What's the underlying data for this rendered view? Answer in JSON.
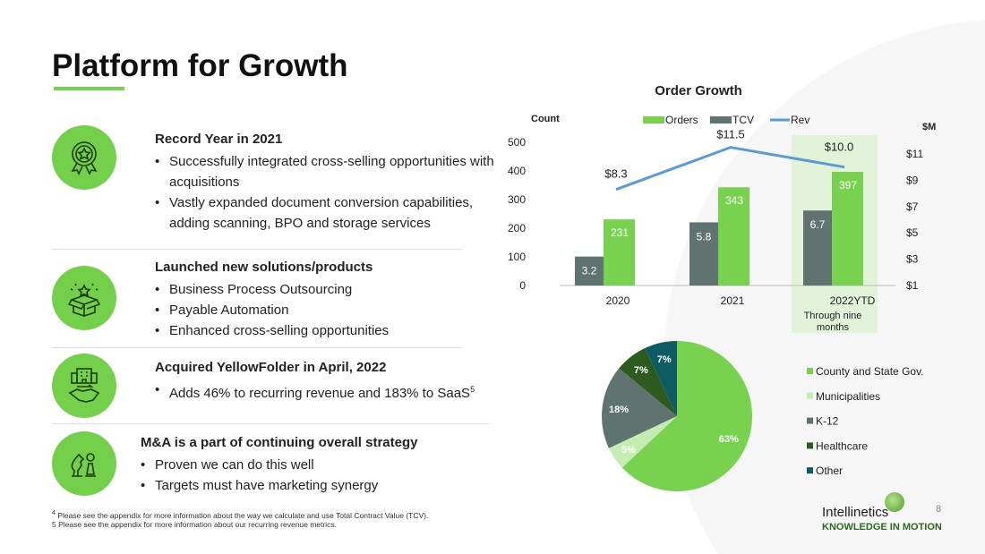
{
  "title": "Platform for Growth",
  "sections": [
    {
      "icon": "award-ribbon-icon",
      "heading": "Record Year in 2021",
      "bullets": [
        "Successfully integrated cross-selling opportunities with acquisitions",
        "Vastly expanded document conversion capabilities, adding scanning, BPO and storage services"
      ]
    },
    {
      "icon": "open-box-star-icon",
      "heading": "Launched new solutions/products",
      "bullets": [
        "Business Process Outsourcing",
        "Payable Automation",
        "Enhanced cross-selling opportunities"
      ]
    },
    {
      "icon": "building-handshake-icon",
      "heading": "Acquired YellowFolder in April, 2022",
      "bullets": [
        "Adds 46% to recurring revenue and 183% to SaaS"
      ],
      "superscript": "5"
    },
    {
      "icon": "chess-pieces-icon",
      "heading": "M&A is a part of continuing overall strategy",
      "bullets": [
        "Proven we can do this well",
        "Targets must have marketing synergy"
      ]
    }
  ],
  "footnotes": [
    {
      "mark": "4",
      "text": " Please see the appendix for more information about the way we calculate and use Total Contract Value (TCV)."
    },
    {
      "mark": "5",
      "text": " Please see the appendix for more information about our recurring revenue metrics."
    }
  ],
  "page_number": "8",
  "logo": {
    "name": "Intellinetics",
    "tagline": "KNOWLEDGE IN MOTION"
  },
  "chart_data": [
    {
      "type": "bar",
      "title": "Order Growth",
      "ylabel": "Count",
      "y2label": "$M",
      "categories": [
        "2020",
        "2021",
        "2022YTD"
      ],
      "category_note": "Through nine months",
      "ylim": [
        0,
        500
      ],
      "yticks": [
        0,
        100,
        200,
        300,
        400,
        500
      ],
      "y2lim": [
        1,
        11
      ],
      "y2ticks": [
        "$1",
        "$3",
        "$5",
        "$7",
        "$9",
        "$11"
      ],
      "series": [
        {
          "name": "TCV",
          "type": "bar",
          "axis": "right",
          "values": [
            3.2,
            5.8,
            6.7
          ],
          "labels": [
            "3.2",
            "5.8",
            "6.7"
          ],
          "color": "#5f7470"
        },
        {
          "name": "Orders",
          "type": "bar",
          "axis": "left",
          "values": [
            231,
            343,
            397
          ],
          "labels": [
            "231",
            "343",
            "397"
          ],
          "color": "#78d14f"
        },
        {
          "name": "Rev",
          "type": "line",
          "axis": "right",
          "values": [
            8.3,
            11.5,
            10.0
          ],
          "labels": [
            "$8.3",
            "$11.5",
            "$10.0"
          ],
          "color": "#5b9bd5"
        }
      ],
      "legend_order": [
        "Orders",
        "TCV",
        "Rev"
      ],
      "legend": "top",
      "highlight": "2022YTD",
      "highlight_color": "#e2f3d9"
    },
    {
      "type": "pie",
      "legend": "right",
      "slices": [
        {
          "label": "County and State Gov.",
          "value": 63,
          "text": "63%",
          "color": "#78d14f"
        },
        {
          "label": "Municipalities",
          "value": 5,
          "text": "5%",
          "color": "#c5edb3"
        },
        {
          "label": "K-12",
          "value": 18,
          "text": "18%",
          "color": "#5f7470"
        },
        {
          "label": "Healthcare",
          "value": 7,
          "text": "7%",
          "color": "#2d5a1f"
        },
        {
          "label": "Other",
          "value": 7,
          "text": "7%",
          "color": "#0d5c63"
        }
      ]
    }
  ]
}
